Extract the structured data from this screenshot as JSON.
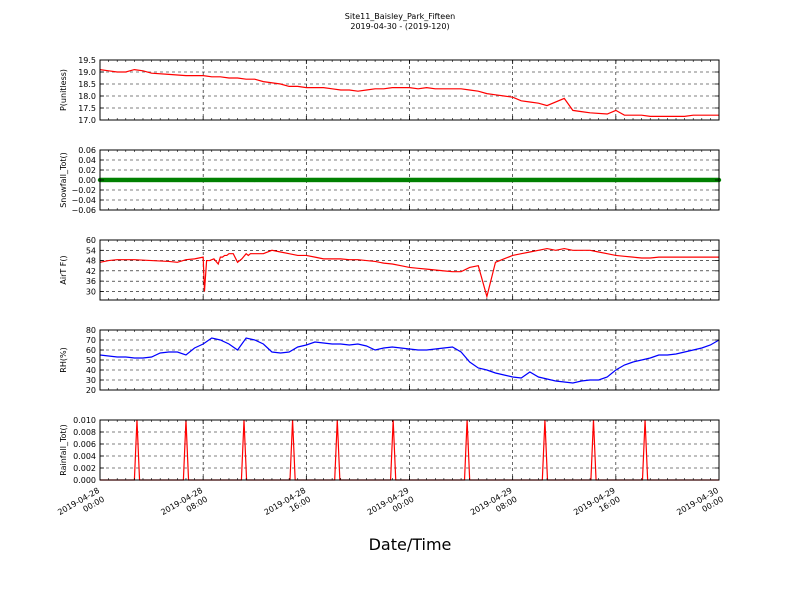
{
  "figure": {
    "title_line1": "Site11_Baisley_Park_Fifteen",
    "title_line2": "2019-04-30 - (2019-120)",
    "xlabel": "Date/Time"
  },
  "chart_data": [
    {
      "type": "line",
      "ylabel": "P(unitless)",
      "ylim": [
        17.0,
        19.5
      ],
      "yticks": [
        "17.0",
        "17.5",
        "18.0",
        "18.5",
        "19.0",
        "19.5"
      ],
      "yticks_values": [
        17.0,
        17.5,
        18.0,
        18.5,
        19.0,
        19.5
      ],
      "color": "#ff0000",
      "grid": true,
      "series": [
        {
          "x": [
            0,
            2,
            4,
            6,
            8,
            10,
            12,
            16,
            20,
            24,
            26,
            28,
            30,
            32,
            34,
            36,
            38,
            42,
            44,
            46,
            48,
            50,
            52,
            54,
            56,
            58,
            60,
            62,
            64,
            66,
            68,
            70,
            72,
            74,
            76,
            78,
            80,
            82,
            84,
            86,
            88,
            90,
            92,
            94,
            96,
            98,
            100,
            102,
            104,
            108,
            110,
            112,
            114,
            118,
            120,
            122,
            126,
            128,
            130,
            132,
            134,
            136,
            138,
            140,
            144
          ],
          "y": [
            19.1,
            19.05,
            19.0,
            19.0,
            19.1,
            19.05,
            18.95,
            18.9,
            18.85,
            18.85,
            18.8,
            18.8,
            18.75,
            18.75,
            18.7,
            18.7,
            18.6,
            18.5,
            18.4,
            18.4,
            18.35,
            18.35,
            18.35,
            18.3,
            18.25,
            18.25,
            18.2,
            18.25,
            18.3,
            18.3,
            18.35,
            18.35,
            18.35,
            18.3,
            18.35,
            18.3,
            18.3,
            18.3,
            18.3,
            18.25,
            18.2,
            18.1,
            18.05,
            18.0,
            17.95,
            17.8,
            17.75,
            17.7,
            17.6,
            17.9,
            17.4,
            17.35,
            17.3,
            17.25,
            17.4,
            17.2,
            17.2,
            17.15,
            17.15,
            17.15,
            17.15,
            17.15,
            17.2,
            17.2,
            17.2
          ]
        }
      ]
    },
    {
      "type": "scatter",
      "ylabel": "Snowfall_Tot()",
      "ylim": [
        -0.06,
        0.06
      ],
      "yticks": [
        "−0.06",
        "−0.04",
        "−0.02",
        "0.00",
        "0.02",
        "0.04",
        "0.06"
      ],
      "yticks_values": [
        -0.06,
        -0.04,
        -0.02,
        0.0,
        0.02,
        0.04,
        0.06
      ],
      "color": "#008000",
      "grid": true,
      "series": [
        {
          "x_start": 0,
          "x_end": 144,
          "x_step": 0.25,
          "y": 0.0
        }
      ]
    },
    {
      "type": "line",
      "ylabel": "AirT F()",
      "ylim": [
        25,
        60
      ],
      "yticks": [
        "30",
        "36",
        "42",
        "48",
        "54",
        "60"
      ],
      "yticks_values": [
        30,
        36,
        42,
        48,
        54,
        60
      ],
      "color": "#ff0000",
      "grid": true,
      "series": [
        {
          "x": [
            0,
            2,
            4,
            8,
            12,
            16,
            18,
            20,
            22,
            24,
            24.3,
            24.8,
            25.5,
            26.5,
            27.5,
            28,
            28.5,
            29,
            29.5,
            30,
            31,
            32,
            33,
            34,
            34.5,
            35,
            36,
            38,
            40,
            42,
            44,
            46,
            48,
            50,
            52,
            54,
            56,
            58,
            60,
            62,
            64,
            66,
            68,
            70,
            72,
            74,
            76,
            78,
            80,
            82,
            84,
            86,
            88,
            90,
            92,
            94,
            96,
            98,
            100,
            102,
            104,
            106,
            108,
            110,
            112,
            114,
            116,
            118,
            120,
            122,
            124,
            126,
            128,
            130,
            132,
            134,
            136,
            138,
            140,
            142,
            144
          ],
          "y": [
            47,
            48,
            48.5,
            48.5,
            48,
            47.5,
            47,
            48.5,
            49,
            50,
            30,
            48,
            48,
            49,
            46,
            50,
            50,
            51,
            51,
            52,
            52,
            47,
            49,
            52,
            51,
            52,
            52,
            52,
            54,
            53,
            52,
            51,
            51,
            50,
            49,
            49,
            49,
            48.5,
            48.5,
            48,
            47.5,
            46.5,
            46,
            45,
            44,
            43.5,
            43,
            42.5,
            42,
            41.5,
            41.5,
            44,
            45,
            27,
            47,
            49,
            51,
            52,
            53,
            54,
            55,
            54,
            55,
            54,
            54,
            54,
            53,
            52,
            51,
            50.5,
            50,
            49.5,
            49.5,
            50,
            50,
            50,
            50,
            50,
            50,
            50,
            50
          ]
        }
      ]
    },
    {
      "type": "line",
      "ylabel": "RH(%)",
      "ylim": [
        20,
        80
      ],
      "yticks": [
        "20",
        "30",
        "40",
        "50",
        "60",
        "70",
        "80"
      ],
      "yticks_values": [
        20,
        30,
        40,
        50,
        60,
        70,
        80
      ],
      "color": "#0000ff",
      "grid": true,
      "series": [
        {
          "x": [
            0,
            2,
            4,
            6,
            8,
            10,
            12,
            14,
            16,
            18,
            20,
            22,
            24,
            26,
            28,
            30,
            32,
            34,
            36,
            38,
            40,
            42,
            44,
            46,
            48,
            50,
            52,
            54,
            56,
            58,
            60,
            62,
            64,
            66,
            68,
            70,
            72,
            74,
            76,
            78,
            80,
            82,
            84,
            86,
            88,
            90,
            92,
            94,
            96,
            98,
            100,
            102,
            104,
            106,
            108,
            110,
            112,
            114,
            116,
            118,
            120,
            122,
            124,
            126,
            128,
            130,
            132,
            134,
            136,
            138,
            140,
            142,
            144
          ],
          "y": [
            55,
            54,
            53,
            53,
            52,
            52,
            53,
            57,
            58,
            58,
            55,
            62,
            66,
            72,
            70,
            66,
            60,
            72,
            70,
            66,
            58,
            57,
            58,
            63,
            65,
            68,
            67,
            66,
            66,
            65,
            66,
            64,
            60,
            62,
            63,
            62,
            61,
            60,
            60,
            61,
            62,
            63,
            58,
            48,
            42,
            40,
            37,
            35,
            33,
            32,
            38,
            33,
            31,
            29,
            28,
            27,
            29,
            30,
            30,
            33,
            40,
            45,
            48,
            50,
            52,
            55,
            55,
            56,
            58,
            60,
            62,
            65,
            70
          ]
        }
      ]
    },
    {
      "type": "line",
      "ylabel": "Rainfall_Tot()",
      "ylim": [
        0.0,
        0.01
      ],
      "yticks": [
        "0.000",
        "0.002",
        "0.004",
        "0.006",
        "0.008",
        "0.010"
      ],
      "yticks_values": [
        0.0,
        0.002,
        0.004,
        0.006,
        0.008,
        0.01
      ],
      "color": "#ff0000",
      "grid": true,
      "series": [
        {
          "spikes_at": [
            8.6,
            20,
            33.5,
            44.8,
            55.2,
            68.2,
            85.4,
            103.5,
            114.8,
            126.8
          ],
          "spike_value": 0.01,
          "spike_halfwidth": 0.6
        }
      ]
    }
  ],
  "x_axis": {
    "tick_hours": [
      0,
      24,
      48,
      72,
      96,
      120,
      144
    ],
    "tick_labels_line1": [
      "2019-04-28",
      "2019-04-28",
      "2019-04-28",
      "2019-04-29",
      "2019-04-29",
      "2019-04-29",
      "2019-04-30"
    ],
    "tick_labels_line2": [
      "00:00",
      "08:00",
      "16:00",
      "00:00",
      "08:00",
      "16:00",
      "00:00"
    ],
    "minor_every_hours": 8
  }
}
